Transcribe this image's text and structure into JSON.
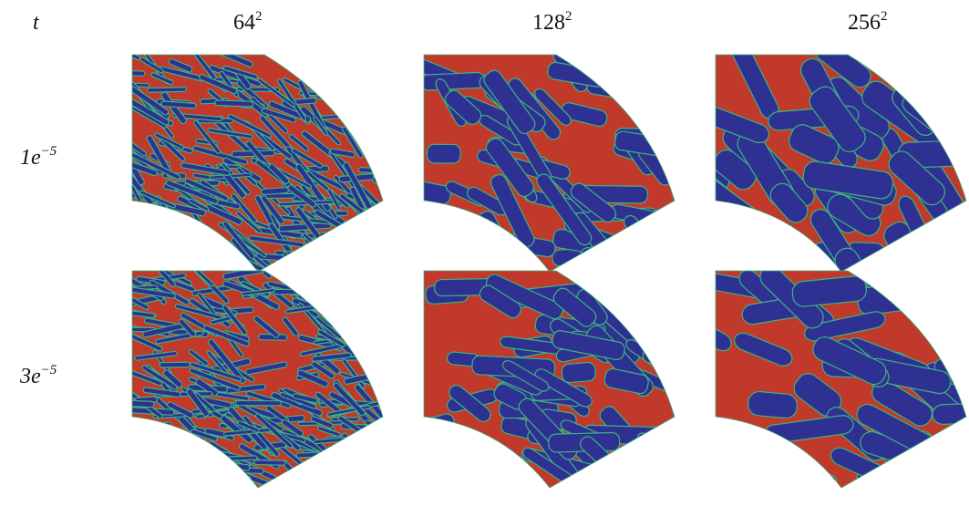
{
  "header": {
    "label": "t"
  },
  "columns": [
    {
      "base": "64",
      "exp": "2"
    },
    {
      "base": "128",
      "exp": "2"
    },
    {
      "base": "256",
      "exp": "2"
    }
  ],
  "rows": [
    {
      "base": "1e",
      "exp": "−5"
    },
    {
      "base": "3e",
      "exp": "−5"
    }
  ]
}
